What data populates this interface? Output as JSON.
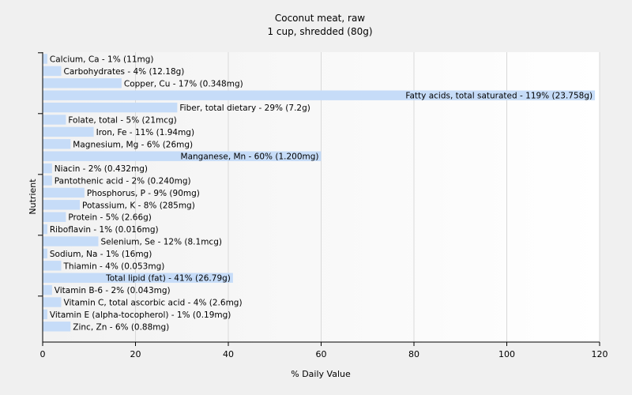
{
  "chart_data": {
    "type": "bar",
    "orientation": "horizontal",
    "title": "Coconut meat, raw",
    "subtitle": "1 cup, shredded (80g)",
    "xlabel": "% Daily Value",
    "ylabel": "Nutrient",
    "xlim": [
      0,
      120
    ],
    "xticks": [
      "0",
      "20",
      "40",
      "60",
      "80",
      "100",
      "120"
    ],
    "grid": true,
    "bar_color": "#c6dcf8",
    "bars": [
      {
        "name": "Calcium, Ca",
        "value": 1,
        "label": "Calcium, Ca - 1% (11mg)"
      },
      {
        "name": "Carbohydrates",
        "value": 4,
        "label": "Carbohydrates - 4% (12.18g)"
      },
      {
        "name": "Copper, Cu",
        "value": 17,
        "label": "Copper, Cu - 17% (0.348mg)"
      },
      {
        "name": "Fatty acids, total saturated",
        "value": 119,
        "label": "Fatty acids, total saturated - 119% (23.758g)"
      },
      {
        "name": "Fiber, total dietary",
        "value": 29,
        "label": "Fiber, total dietary - 29% (7.2g)"
      },
      {
        "name": "Folate, total",
        "value": 5,
        "label": "Folate, total - 5% (21mcg)"
      },
      {
        "name": "Iron, Fe",
        "value": 11,
        "label": "Iron, Fe - 11% (1.94mg)"
      },
      {
        "name": "Magnesium, Mg",
        "value": 6,
        "label": "Magnesium, Mg - 6% (26mg)"
      },
      {
        "name": "Manganese, Mn",
        "value": 60,
        "label": "Manganese, Mn - 60% (1.200mg)"
      },
      {
        "name": "Niacin",
        "value": 2,
        "label": "Niacin - 2% (0.432mg)"
      },
      {
        "name": "Pantothenic acid",
        "value": 2,
        "label": "Pantothenic acid - 2% (0.240mg)"
      },
      {
        "name": "Phosphorus, P",
        "value": 9,
        "label": "Phosphorus, P - 9% (90mg)"
      },
      {
        "name": "Potassium, K",
        "value": 8,
        "label": "Potassium, K - 8% (285mg)"
      },
      {
        "name": "Protein",
        "value": 5,
        "label": "Protein - 5% (2.66g)"
      },
      {
        "name": "Riboflavin",
        "value": 1,
        "label": "Riboflavin - 1% (0.016mg)"
      },
      {
        "name": "Selenium, Se",
        "value": 12,
        "label": "Selenium, Se - 12% (8.1mcg)"
      },
      {
        "name": "Sodium, Na",
        "value": 1,
        "label": "Sodium, Na - 1% (16mg)"
      },
      {
        "name": "Thiamin",
        "value": 4,
        "label": "Thiamin - 4% (0.053mg)"
      },
      {
        "name": "Total lipid (fat)",
        "value": 41,
        "label": "Total lipid (fat) - 41% (26.79g)"
      },
      {
        "name": "Vitamin B-6",
        "value": 2,
        "label": "Vitamin B-6 - 2% (0.043mg)"
      },
      {
        "name": "Vitamin C, total ascorbic acid",
        "value": 4,
        "label": "Vitamin C, total ascorbic acid - 4% (2.6mg)"
      },
      {
        "name": "Vitamin E (alpha-tocopherol)",
        "value": 1,
        "label": "Vitamin E (alpha-tocopherol) - 1% (0.19mg)"
      },
      {
        "name": "Zinc, Zn",
        "value": 6,
        "label": "Zinc, Zn - 6% (0.88mg)"
      }
    ]
  }
}
